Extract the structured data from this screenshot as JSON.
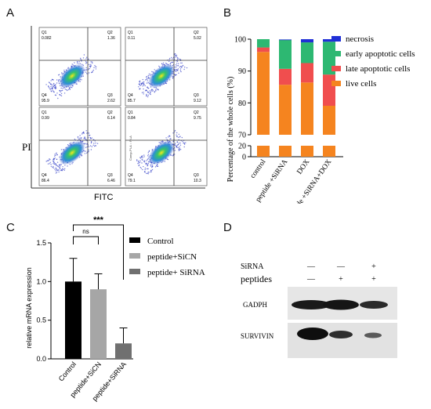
{
  "panels": {
    "A": "A",
    "B": "B",
    "C": "C",
    "D": "D"
  },
  "panelA": {
    "xlabel": "FITC",
    "ylabel": "PI",
    "inner_axis_label": "Comp-PI-A :: PI-A",
    "plots": [
      {
        "q1": "0.082",
        "q2": "1.36",
        "q3": "2.62",
        "q4": "95.9"
      },
      {
        "q1": "0.11",
        "q2": "5.02",
        "q3": "9.12",
        "q4": "85.7"
      },
      {
        "q1": "0.99",
        "q2": "6.14",
        "q3": "6.46",
        "q4": "86.4"
      },
      {
        "q1": "0.84",
        "q2": "9.75",
        "q3": "10.3",
        "q4": "79.1"
      }
    ],
    "quadrant_names": {
      "q1": "Q1",
      "q2": "Q2",
      "q3": "Q3",
      "q4": "Q4"
    }
  },
  "chart_data": [
    {
      "type": "bar",
      "stacked": true,
      "ylabel": "Percentage of the whole cells (%)",
      "categories": [
        "control",
        "peptide +SiRNA",
        "DOX",
        "peptide +SiRNA+DOX"
      ],
      "ylim": [
        0,
        100
      ],
      "axis_break": [
        20,
        70
      ],
      "yticks": [
        "0",
        "20",
        "70",
        "80",
        "90",
        "100"
      ],
      "series": [
        {
          "name": "live cells",
          "color": "#f5841f",
          "values": [
            96.0,
            85.7,
            86.4,
            79.1
          ]
        },
        {
          "name": "late apoptotic cells",
          "color": "#f04e4e",
          "values": [
            1.4,
            5.0,
            6.1,
            9.8
          ]
        },
        {
          "name": "early apoptotic cells",
          "color": "#2db872",
          "values": [
            2.6,
            9.1,
            6.5,
            10.3
          ]
        },
        {
          "name": "necrosis",
          "color": "#1f2fd6",
          "values": [
            0.1,
            0.1,
            1.0,
            0.8
          ]
        }
      ],
      "legend_order": [
        "necrosis",
        "early apoptotic cells",
        "late apoptotic cells",
        "live cells"
      ]
    },
    {
      "type": "bar",
      "ylabel": "relative mRNA expression",
      "categories": [
        "Control",
        "peptide+SiCN",
        "peptide+SiRNA"
      ],
      "values": [
        1.0,
        0.9,
        0.2
      ],
      "errors": [
        0.3,
        0.2,
        0.2
      ],
      "colors": [
        "#000000",
        "#a6a6a6",
        "#707070"
      ],
      "ylim": [
        0,
        1.5
      ],
      "yticks": [
        "0.0",
        "0.5",
        "1.0",
        "1.5"
      ],
      "legend": [
        "Control",
        "peptide+SiCN",
        "peptide+ SiRNA"
      ],
      "annotations": {
        "ns": "ns",
        "sig": "***"
      }
    }
  ],
  "panelD": {
    "row_labels": {
      "sirna": "SiRNA",
      "peptides": "peptides"
    },
    "sirna_marks": [
      "—",
      "—",
      "+"
    ],
    "peptide_marks": [
      "—",
      "+",
      "+"
    ],
    "bands": [
      "GADPH",
      "SURVIVIN"
    ]
  }
}
